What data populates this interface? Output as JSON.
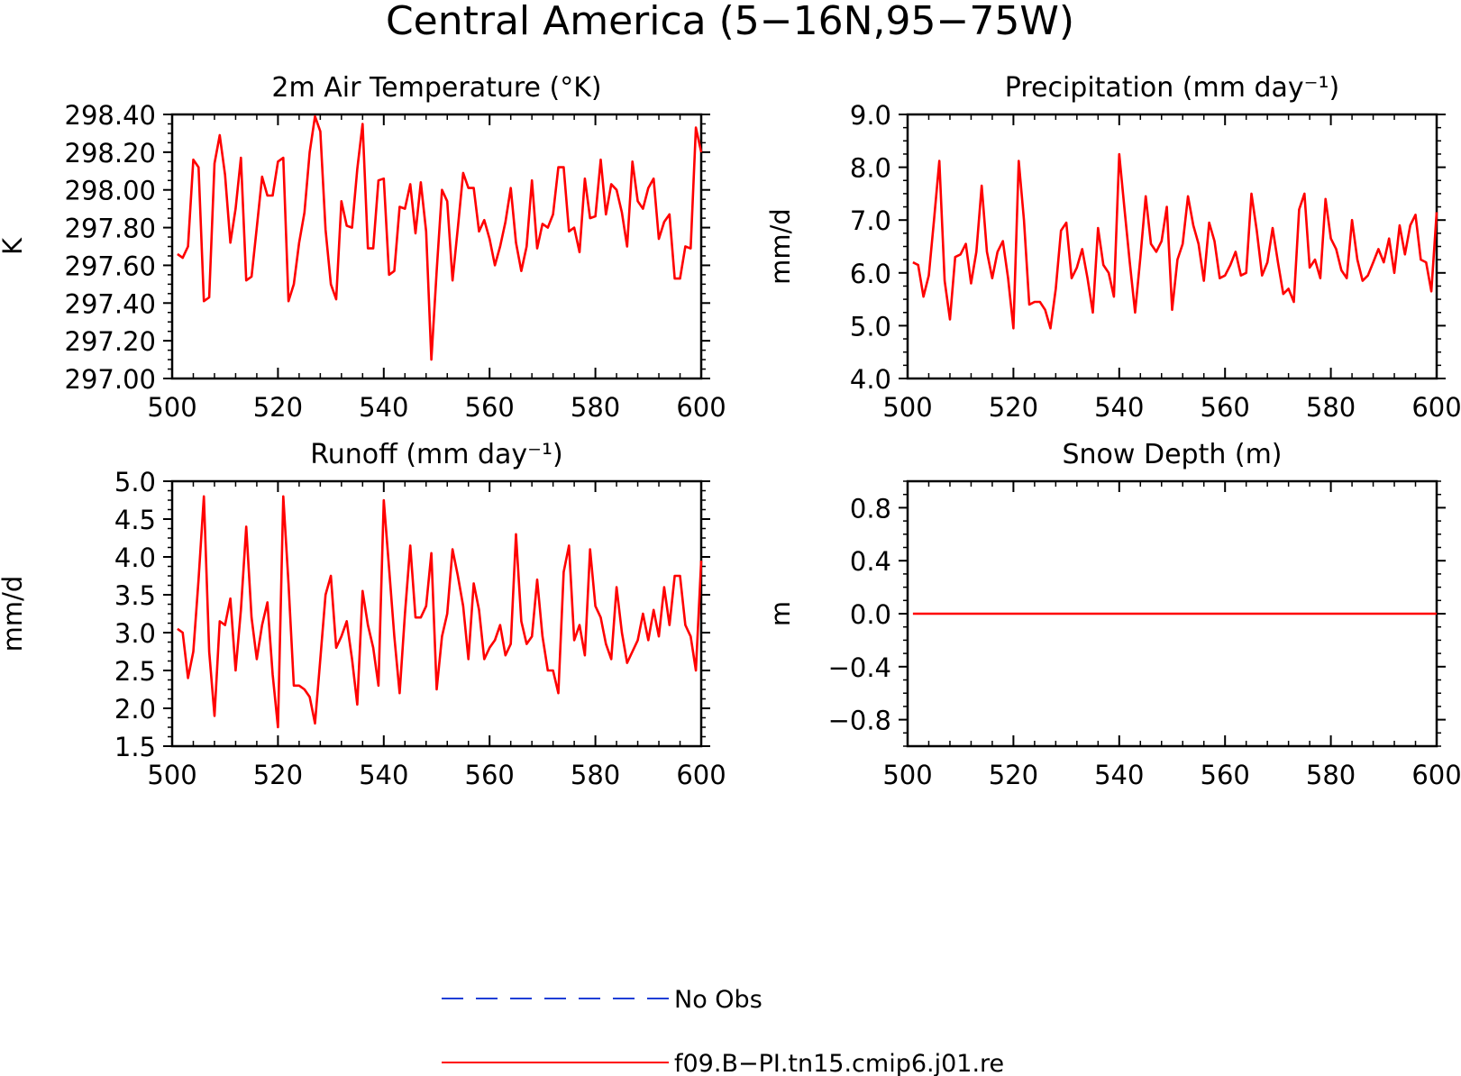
{
  "title": "Central America (5−16N,95−75W)",
  "legend": {
    "placement": "bottom-center",
    "entries": [
      {
        "label": "No Obs",
        "color": "#1f3fd6",
        "dash": true
      },
      {
        "label": "f09.B−PI.tn15.cmip6.j01.re",
        "color": "#ff0000",
        "dash": false
      }
    ]
  },
  "chart_data": [
    {
      "type": "line",
      "title": "2m Air Temperature (°K)",
      "ylabel": "K",
      "xlim": [
        500,
        600
      ],
      "ylim": [
        297.0,
        298.4
      ],
      "xticks": [
        500,
        520,
        540,
        560,
        580,
        600
      ],
      "yticks": [
        297.0,
        297.2,
        297.4,
        297.6,
        297.8,
        298.0,
        298.2,
        298.4
      ],
      "ytick_labels": [
        "297.00",
        "297.20",
        "297.40",
        "297.60",
        "297.80",
        "298.00",
        "298.20",
        "298.40"
      ],
      "series": [
        {
          "color": "#ff0000",
          "x_start": 501,
          "values": [
            297.66,
            297.64,
            297.7,
            298.16,
            298.12,
            297.41,
            297.43,
            298.14,
            298.29,
            298.08,
            297.72,
            297.9,
            298.17,
            297.52,
            297.54,
            297.8,
            298.07,
            297.97,
            297.97,
            298.15,
            298.17,
            297.41,
            297.5,
            297.72,
            297.88,
            298.2,
            298.39,
            298.31,
            297.79,
            297.5,
            297.42,
            297.94,
            297.81,
            297.8,
            298.11,
            298.35,
            297.69,
            297.69,
            298.05,
            298.06,
            297.55,
            297.57,
            297.91,
            297.9,
            298.03,
            297.77,
            298.04,
            297.78,
            297.1,
            297.57,
            298.0,
            297.94,
            297.52,
            297.8,
            298.09,
            298.01,
            298.01,
            297.78,
            297.84,
            297.74,
            297.6,
            297.7,
            297.83,
            298.01,
            297.72,
            297.57,
            297.7,
            298.05,
            297.69,
            297.82,
            297.8,
            297.87,
            298.12,
            298.12,
            297.78,
            297.8,
            297.67,
            298.06,
            297.85,
            297.86,
            298.16,
            297.87,
            298.03,
            298.0,
            297.88,
            297.7,
            298.15,
            297.94,
            297.9,
            298.01,
            298.06,
            297.74,
            297.83,
            297.87,
            297.53,
            297.53,
            297.7,
            297.69,
            298.33,
            298.2
          ]
        }
      ]
    },
    {
      "type": "line",
      "title": "Precipitation (mm day⁻¹)",
      "ylabel": "mm/d",
      "xlim": [
        500,
        600
      ],
      "ylim": [
        4.0,
        9.0
      ],
      "xticks": [
        500,
        520,
        540,
        560,
        580,
        600
      ],
      "yticks": [
        4.0,
        5.0,
        6.0,
        7.0,
        8.0,
        9.0
      ],
      "ytick_labels": [
        "4.0",
        "5.0",
        "6.0",
        "7.0",
        "8.0",
        "9.0"
      ],
      "series": [
        {
          "color": "#ff0000",
          "x_start": 501,
          "values": [
            6.2,
            6.15,
            5.55,
            5.95,
            7.0,
            8.12,
            5.85,
            5.12,
            6.3,
            6.35,
            6.55,
            5.8,
            6.4,
            7.65,
            6.4,
            5.9,
            6.4,
            6.6,
            5.9,
            4.95,
            8.12,
            7.0,
            5.4,
            5.45,
            5.45,
            5.3,
            4.95,
            5.7,
            6.8,
            6.95,
            5.9,
            6.1,
            6.45,
            5.9,
            5.25,
            6.85,
            6.15,
            6.0,
            5.55,
            8.25,
            7.2,
            6.2,
            5.25,
            6.3,
            7.45,
            6.55,
            6.4,
            6.6,
            7.25,
            5.3,
            6.25,
            6.55,
            7.45,
            6.9,
            6.55,
            5.85,
            6.95,
            6.6,
            5.9,
            5.95,
            6.15,
            6.4,
            5.95,
            6.0,
            7.5,
            6.8,
            5.95,
            6.2,
            6.85,
            6.2,
            5.6,
            5.7,
            5.45,
            7.2,
            7.5,
            6.1,
            6.25,
            5.9,
            7.4,
            6.65,
            6.45,
            6.05,
            5.9,
            7.0,
            6.25,
            5.85,
            5.95,
            6.2,
            6.45,
            6.2,
            6.65,
            6.0,
            6.9,
            6.35,
            6.9,
            7.1,
            6.25,
            6.2,
            5.65,
            7.15
          ]
        }
      ]
    },
    {
      "type": "line",
      "title": "Runoff (mm day⁻¹)",
      "ylabel": "mm/d",
      "xlim": [
        500,
        600
      ],
      "ylim": [
        1.5,
        5.0
      ],
      "xticks": [
        500,
        520,
        540,
        560,
        580,
        600
      ],
      "yticks": [
        1.5,
        2.0,
        2.5,
        3.0,
        3.5,
        4.0,
        4.5,
        5.0
      ],
      "ytick_labels": [
        "1.5",
        "2.0",
        "2.5",
        "3.0",
        "3.5",
        "4.0",
        "4.5",
        "5.0"
      ],
      "series": [
        {
          "color": "#ff0000",
          "x_start": 501,
          "values": [
            3.05,
            3.0,
            2.4,
            2.75,
            3.7,
            4.8,
            2.75,
            1.9,
            3.15,
            3.1,
            3.45,
            2.5,
            3.3,
            4.4,
            3.2,
            2.65,
            3.1,
            3.4,
            2.45,
            1.75,
            4.8,
            3.65,
            2.3,
            2.3,
            2.25,
            2.15,
            1.8,
            2.65,
            3.5,
            3.75,
            2.8,
            2.95,
            3.15,
            2.65,
            2.05,
            3.55,
            3.1,
            2.8,
            2.3,
            4.75,
            3.85,
            2.95,
            2.2,
            3.25,
            4.15,
            3.2,
            3.2,
            3.35,
            4.05,
            2.25,
            2.95,
            3.25,
            4.1,
            3.75,
            3.35,
            2.65,
            3.65,
            3.3,
            2.65,
            2.8,
            2.9,
            3.1,
            2.7,
            2.85,
            4.3,
            3.15,
            2.85,
            2.95,
            3.7,
            2.95,
            2.5,
            2.5,
            2.2,
            3.8,
            4.15,
            2.9,
            3.1,
            2.7,
            4.1,
            3.35,
            3.2,
            2.85,
            2.65,
            3.6,
            3.0,
            2.6,
            2.75,
            2.9,
            3.25,
            2.9,
            3.3,
            2.95,
            3.6,
            3.1,
            3.75,
            3.75,
            3.1,
            2.95,
            2.5,
            3.95
          ]
        }
      ]
    },
    {
      "type": "line",
      "title": "Snow Depth (m)",
      "ylabel": "m",
      "xlim": [
        500,
        600
      ],
      "ylim": [
        -1.0,
        1.0
      ],
      "xticks": [
        500,
        520,
        540,
        560,
        580,
        600
      ],
      "yticks": [
        -0.8,
        -0.4,
        0.0,
        0.4,
        0.8
      ],
      "ytick_labels": [
        "−0.8",
        "−0.4",
        "0.0",
        "0.4",
        "0.8"
      ],
      "series": [
        {
          "color": "#ff0000",
          "x_start": 501,
          "values": [
            0,
            0,
            0,
            0,
            0,
            0,
            0,
            0,
            0,
            0,
            0,
            0,
            0,
            0,
            0,
            0,
            0,
            0,
            0,
            0,
            0,
            0,
            0,
            0,
            0,
            0,
            0,
            0,
            0,
            0,
            0,
            0,
            0,
            0,
            0,
            0,
            0,
            0,
            0,
            0,
            0,
            0,
            0,
            0,
            0,
            0,
            0,
            0,
            0,
            0,
            0,
            0,
            0,
            0,
            0,
            0,
            0,
            0,
            0,
            0,
            0,
            0,
            0,
            0,
            0,
            0,
            0,
            0,
            0,
            0,
            0,
            0,
            0,
            0,
            0,
            0,
            0,
            0,
            0,
            0,
            0,
            0,
            0,
            0,
            0,
            0,
            0,
            0,
            0,
            0,
            0,
            0,
            0,
            0,
            0,
            0,
            0,
            0,
            0,
            0
          ]
        }
      ]
    }
  ]
}
